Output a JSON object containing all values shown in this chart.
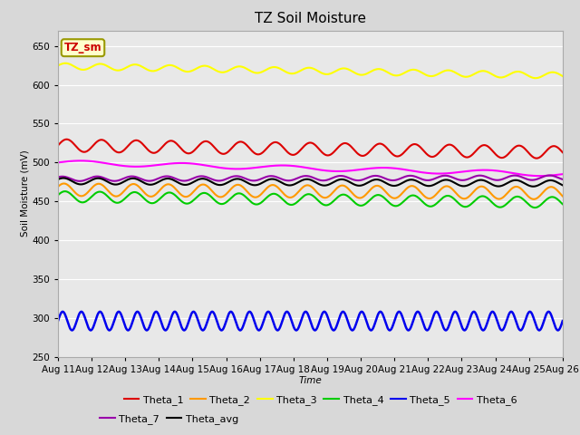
{
  "title": "TZ Soil Moisture",
  "xlabel": "Time",
  "ylabel": "Soil Moisture (mV)",
  "ylim": [
    250,
    670
  ],
  "yticks": [
    250,
    300,
    350,
    400,
    450,
    500,
    550,
    600,
    650
  ],
  "date_start": 11,
  "date_end": 26,
  "n_points": 1500,
  "series": [
    {
      "name": "Theta_1",
      "color": "#dd0000",
      "base": 522,
      "amp": 8,
      "freq": 14.5,
      "trend": -0.6,
      "phase": 0.0,
      "lw": 1.5
    },
    {
      "name": "Theta_2",
      "color": "#ff9900",
      "base": 465,
      "amp": 8,
      "freq": 14.5,
      "trend": -0.3,
      "phase": 0.5,
      "lw": 1.5
    },
    {
      "name": "Theta_3",
      "color": "#ffff00",
      "base": 624,
      "amp": 4,
      "freq": 14.5,
      "trend": -0.8,
      "phase": 0.2,
      "lw": 1.5
    },
    {
      "name": "Theta_4",
      "color": "#00cc00",
      "base": 456,
      "amp": 7,
      "freq": 14.5,
      "trend": -0.5,
      "phase": 0.3,
      "lw": 1.5
    },
    {
      "name": "Theta_5",
      "color": "#0000ee",
      "base": 296,
      "amp": 12,
      "freq": 27.0,
      "trend": 0.0,
      "phase": 0.0,
      "lw": 1.8
    },
    {
      "name": "Theta_6",
      "color": "#ff00ff",
      "base": 500,
      "amp": 3,
      "freq": 5.0,
      "trend": -1.0,
      "phase": 0.0,
      "lw": 1.5
    },
    {
      "name": "Theta_7",
      "color": "#9900aa",
      "base": 479,
      "amp": 3,
      "freq": 14.5,
      "trend": 0.1,
      "phase": 0.8,
      "lw": 1.5
    },
    {
      "name": "Theta_avg",
      "color": "#000000",
      "base": 476,
      "amp": 4,
      "freq": 14.5,
      "trend": -0.2,
      "phase": 0.6,
      "lw": 1.5
    }
  ],
  "legend_label": "TZ_sm",
  "legend_box_facecolor": "#ffffcc",
  "legend_box_edgecolor": "#999900",
  "legend_text_color": "#cc0000",
  "fig_facecolor": "#d8d8d8",
  "plot_facecolor": "#e8e8e8",
  "title_fontsize": 11,
  "axis_fontsize": 7.5,
  "legend_fontsize": 8,
  "grid_color": "#ffffff",
  "spine_color": "#aaaaaa"
}
